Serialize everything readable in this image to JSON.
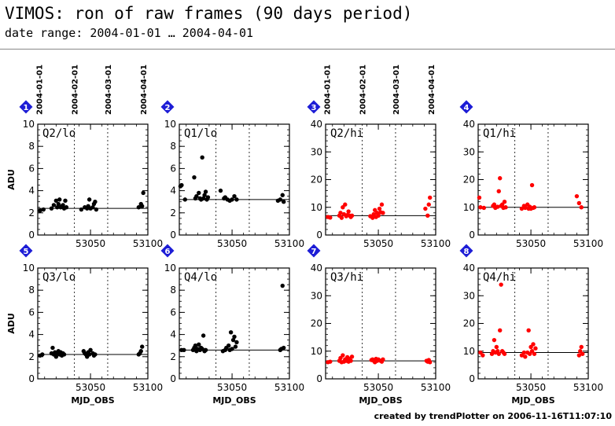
{
  "header": {
    "title": "VIMOS: ron of raw frames (90 days period)",
    "subtitle": "date range: 2004-01-01 … 2004-04-01"
  },
  "footer": {
    "credit": "created by trendPlotter on 2006-11-16T11:07:10"
  },
  "colors": {
    "lo_points": "#000000",
    "hi_points": "#ff0000",
    "badge": "#1d1dd6",
    "axis": "#000000"
  },
  "top_date_labels": [
    "2004-01-01",
    "2004-02-01",
    "2004-03-01",
    "2004-04-01"
  ],
  "chart_data": [
    {
      "type": "scatter",
      "badge": "1",
      "label": "Q2/lo",
      "color": "black",
      "ylabel": "ADU",
      "xlabel": "",
      "ylim": [
        0,
        10
      ],
      "yticks": [
        0,
        2,
        4,
        6,
        8,
        10
      ],
      "xticks": [
        53050,
        53100
      ],
      "xlim": [
        53004,
        53100
      ],
      "ref_line": 2.4,
      "x": [
        53006,
        53009,
        53016,
        53018,
        53020,
        53021,
        53022,
        53023,
        53024,
        53025,
        53026,
        53027,
        53028,
        53029,
        53042,
        53045,
        53047,
        53048,
        53049,
        53050,
        53052,
        53053,
        53054,
        53055,
        53092,
        53094,
        53095,
        53096
      ],
      "y": [
        2.2,
        2.3,
        2.4,
        2.7,
        3.1,
        2.5,
        2.8,
        3.2,
        2.5,
        2.6,
        2.7,
        2.4,
        3.1,
        2.5,
        2.3,
        2.5,
        2.4,
        2.6,
        3.2,
        2.4,
        2.5,
        2.8,
        3.0,
        2.3,
        2.5,
        2.8,
        2.6,
        3.8
      ]
    },
    {
      "type": "scatter",
      "badge": "2",
      "label": "Q1/lo",
      "color": "black",
      "ylabel": "",
      "xlabel": "",
      "ylim": [
        0,
        10
      ],
      "yticks": [
        0,
        2,
        4,
        6,
        8,
        10
      ],
      "xticks": [
        53050,
        53100
      ],
      "xlim": [
        53004,
        53100
      ],
      "ref_line": 3.2,
      "x": [
        53005,
        53006,
        53009,
        53017,
        53018,
        53019,
        53021,
        53022,
        53023,
        53024,
        53025,
        53026,
        53027,
        53028,
        53029,
        53040,
        53043,
        53044,
        53046,
        53048,
        53050,
        53052,
        53054,
        53090,
        53092,
        53094,
        53095
      ],
      "y": [
        4.4,
        4.5,
        3.2,
        5.2,
        3.3,
        3.5,
        3.8,
        3.3,
        3.2,
        7.0,
        3.3,
        3.6,
        3.9,
        3.2,
        3.4,
        4.0,
        3.3,
        3.4,
        3.2,
        3.1,
        3.2,
        3.5,
        3.2,
        3.1,
        3.2,
        3.6,
        3.0
      ]
    },
    {
      "type": "scatter",
      "badge": "3",
      "label": "Q2/hi",
      "color": "red",
      "ylabel": "",
      "xlabel": "",
      "ylim": [
        0,
        40
      ],
      "yticks": [
        0,
        10,
        20,
        30,
        40
      ],
      "xticks": [
        53050,
        53100
      ],
      "xlim": [
        53004,
        53100
      ],
      "ref_line": 7.0,
      "x": [
        53006,
        53008,
        53016,
        53017,
        53018,
        53019,
        53020,
        53021,
        53022,
        53023,
        53024,
        53025,
        53026,
        53027,
        53043,
        53045,
        53046,
        53047,
        53048,
        53049,
        53050,
        53051,
        53052,
        53053,
        53054,
        53091,
        53093,
        53094,
        53095
      ],
      "y": [
        6.5,
        6.3,
        7.0,
        8.0,
        6.2,
        10.0,
        7.5,
        11.0,
        6.8,
        7.2,
        8.5,
        7.0,
        6.5,
        7.0,
        6.8,
        6.2,
        7.5,
        9.0,
        6.5,
        8.0,
        7.0,
        9.5,
        8.2,
        11.0,
        8.0,
        9.5,
        7.0,
        11.0,
        13.5
      ]
    },
    {
      "type": "scatter",
      "badge": "4",
      "label": "Q1/hi",
      "color": "red",
      "ylabel": "",
      "xlabel": "",
      "ylim": [
        0,
        40
      ],
      "yticks": [
        0,
        10,
        20,
        30,
        40
      ],
      "xticks": [
        53050,
        53100
      ],
      "xlim": [
        53004,
        53100
      ],
      "ref_line": 10.0,
      "x": [
        53005,
        53006,
        53009,
        53017,
        53018,
        53019,
        53021,
        53022,
        53023,
        53024,
        53025,
        53026,
        53027,
        53028,
        53042,
        53044,
        53045,
        53047,
        53048,
        53049,
        53050,
        53051,
        53052,
        53053,
        53090,
        53092,
        53094
      ],
      "y": [
        13.5,
        10.0,
        9.8,
        10.5,
        11.0,
        9.8,
        10.2,
        15.8,
        20.5,
        10.5,
        11.0,
        9.8,
        12.0,
        10.0,
        9.5,
        10.5,
        9.8,
        11.0,
        9.5,
        10.2,
        9.5,
        18.0,
        9.8,
        10.0,
        14.0,
        11.5,
        10.0
      ]
    },
    {
      "type": "scatter",
      "badge": "5",
      "label": "Q3/lo",
      "color": "black",
      "ylabel": "ADU",
      "xlabel": "MJD_OBS",
      "ylim": [
        0,
        10
      ],
      "yticks": [
        0,
        2,
        4,
        6,
        8,
        10
      ],
      "xticks": [
        53050,
        53100
      ],
      "xlim": [
        53004,
        53100
      ],
      "ref_line": 2.2,
      "x": [
        53006,
        53008,
        53016,
        53017,
        53018,
        53019,
        53020,
        53021,
        53022,
        53023,
        53024,
        53025,
        53026,
        53027,
        53044,
        53045,
        53046,
        53047,
        53048,
        53049,
        53050,
        53052,
        53053,
        53054,
        53092,
        53093,
        53094,
        53095
      ],
      "y": [
        2.1,
        2.2,
        2.3,
        2.8,
        2.2,
        2.4,
        2.0,
        2.3,
        2.5,
        2.2,
        2.4,
        2.1,
        2.3,
        2.2,
        2.5,
        2.3,
        2.2,
        2.0,
        2.4,
        2.2,
        2.6,
        2.3,
        2.1,
        2.2,
        2.2,
        2.3,
        2.5,
        2.9
      ]
    },
    {
      "type": "scatter",
      "badge": "6",
      "label": "Q4/lo",
      "color": "black",
      "ylabel": "",
      "xlabel": "MJD_OBS",
      "ylim": [
        0,
        10
      ],
      "yticks": [
        0,
        2,
        4,
        6,
        8,
        10
      ],
      "xticks": [
        53050,
        53100
      ],
      "xlim": [
        53004,
        53100
      ],
      "ref_line": 2.6,
      "x": [
        53006,
        53008,
        53016,
        53017,
        53018,
        53019,
        53020,
        53021,
        53022,
        53023,
        53024,
        53025,
        53026,
        53027,
        53042,
        53044,
        53045,
        53047,
        53048,
        53049,
        53050,
        53051,
        53052,
        53053,
        53054,
        53092,
        53093,
        53094,
        53095
      ],
      "y": [
        2.6,
        2.6,
        2.6,
        2.8,
        3.0,
        2.5,
        2.7,
        3.1,
        2.6,
        2.8,
        2.7,
        3.9,
        2.5,
        2.6,
        2.5,
        2.6,
        2.8,
        3.0,
        2.6,
        4.2,
        2.7,
        3.5,
        3.8,
        2.9,
        3.3,
        2.6,
        2.7,
        8.4,
        2.8
      ]
    },
    {
      "type": "scatter",
      "badge": "7",
      "label": "Q3/hi",
      "color": "red",
      "ylabel": "",
      "xlabel": "MJD_OBS",
      "ylim": [
        0,
        40
      ],
      "yticks": [
        0,
        10,
        20,
        30,
        40
      ],
      "xticks": [
        53050,
        53100
      ],
      "xlim": [
        53004,
        53100
      ],
      "ref_line": 6.5,
      "x": [
        53006,
        53008,
        53016,
        53017,
        53018,
        53019,
        53020,
        53021,
        53022,
        53023,
        53024,
        53025,
        53026,
        53027,
        53044,
        53045,
        53046,
        53047,
        53048,
        53049,
        53050,
        53052,
        53053,
        53054,
        53092,
        53093,
        53094,
        53095
      ],
      "y": [
        6.0,
        6.2,
        6.5,
        7.5,
        6.0,
        8.5,
        6.2,
        7.0,
        6.5,
        7.8,
        6.2,
        7.2,
        6.5,
        8.0,
        6.8,
        7.0,
        6.5,
        6.0,
        7.2,
        6.5,
        7.0,
        6.5,
        6.2,
        7.0,
        6.5,
        6.2,
        6.8,
        6.0
      ]
    },
    {
      "type": "scatter",
      "badge": "8",
      "label": "Q4/hi",
      "color": "red",
      "ylabel": "",
      "xlabel": "MJD_OBS",
      "ylim": [
        0,
        40
      ],
      "yticks": [
        0,
        10,
        20,
        30,
        40
      ],
      "xticks": [
        53050,
        53100
      ],
      "xlim": [
        53004,
        53100
      ],
      "ref_line": 9.5,
      "x": [
        53006,
        53008,
        53016,
        53017,
        53018,
        53019,
        53020,
        53021,
        53022,
        53023,
        53024,
        53025,
        53026,
        53027,
        53042,
        53044,
        53045,
        53047,
        53048,
        53049,
        53050,
        53051,
        53052,
        53053,
        53054,
        53092,
        53093,
        53094,
        53095
      ],
      "y": [
        9.5,
        8.5,
        9.0,
        10.0,
        14.0,
        9.5,
        11.5,
        10.0,
        9.0,
        17.5,
        34.0,
        10.0,
        9.5,
        9.0,
        8.5,
        9.5,
        8.0,
        9.5,
        17.5,
        9.0,
        11.5,
        10.0,
        12.5,
        9.0,
        11.0,
        8.5,
        10.0,
        11.5,
        9.0
      ]
    }
  ]
}
